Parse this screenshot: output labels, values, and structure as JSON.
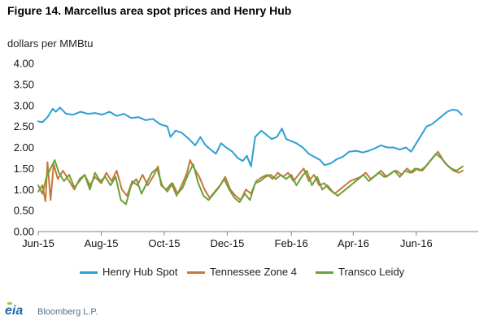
{
  "title": "Figure 14. Marcellus area spot prices and Henry Hub",
  "unit_label": "dollars per MMBtu",
  "source": {
    "logo": "eia",
    "credit": "Bloomberg L.P."
  },
  "colors": {
    "henry": "#2e9fd3",
    "tennessee": "#c8773a",
    "transco": "#6aa23a",
    "axis": "#808080",
    "grid": "#e0e0e0"
  },
  "chart_data": {
    "type": "line",
    "title": "Figure 14. Marcellus area spot prices and Henry Hub",
    "ylabel": "dollars per MMBtu",
    "xlabel": "",
    "ylim": [
      0,
      4
    ],
    "xlim": [
      "2015-06-01",
      "2016-07-31"
    ],
    "grid": false,
    "legend_position": "bottom",
    "yticks": [
      "0.00",
      "0.50",
      "1.00",
      "1.50",
      "2.00",
      "2.50",
      "3.00",
      "3.50",
      "4.00"
    ],
    "xticks": [
      "Jun-15",
      "Aug-15",
      "Oct-15",
      "Dec-15",
      "Feb-16",
      "Apr-16",
      "Jun-16"
    ],
    "xtick_dates": [
      "2015-06-01",
      "2015-08-01",
      "2015-10-01",
      "2015-12-01",
      "2016-02-01",
      "2016-04-01",
      "2016-06-01"
    ],
    "series": [
      {
        "name": "Henry Hub Spot",
        "color": "#2e9fd3",
        "points": [
          [
            "2015-06-01",
            2.62
          ],
          [
            "2015-06-05",
            2.6
          ],
          [
            "2015-06-10",
            2.72
          ],
          [
            "2015-06-15",
            2.92
          ],
          [
            "2015-06-18",
            2.85
          ],
          [
            "2015-06-22",
            2.95
          ],
          [
            "2015-06-28",
            2.8
          ],
          [
            "2015-07-05",
            2.78
          ],
          [
            "2015-07-12",
            2.85
          ],
          [
            "2015-07-19",
            2.8
          ],
          [
            "2015-07-26",
            2.82
          ],
          [
            "2015-08-02",
            2.78
          ],
          [
            "2015-08-09",
            2.85
          ],
          [
            "2015-08-16",
            2.75
          ],
          [
            "2015-08-23",
            2.8
          ],
          [
            "2015-08-30",
            2.7
          ],
          [
            "2015-09-06",
            2.72
          ],
          [
            "2015-09-13",
            2.65
          ],
          [
            "2015-09-20",
            2.68
          ],
          [
            "2015-09-27",
            2.55
          ],
          [
            "2015-10-04",
            2.5
          ],
          [
            "2015-10-07",
            2.25
          ],
          [
            "2015-10-12",
            2.4
          ],
          [
            "2015-10-18",
            2.35
          ],
          [
            "2015-10-25",
            2.2
          ],
          [
            "2015-10-31",
            2.05
          ],
          [
            "2015-11-05",
            2.25
          ],
          [
            "2015-11-10",
            2.05
          ],
          [
            "2015-11-15",
            1.95
          ],
          [
            "2015-11-20",
            1.85
          ],
          [
            "2015-11-25",
            2.1
          ],
          [
            "2015-11-30",
            2.0
          ],
          [
            "2015-12-06",
            1.9
          ],
          [
            "2015-12-11",
            1.75
          ],
          [
            "2015-12-16",
            1.68
          ],
          [
            "2015-12-20",
            1.8
          ],
          [
            "2015-12-24",
            1.55
          ],
          [
            "2015-12-28",
            2.25
          ],
          [
            "2016-01-03",
            2.4
          ],
          [
            "2016-01-08",
            2.3
          ],
          [
            "2016-01-13",
            2.2
          ],
          [
            "2016-01-18",
            2.25
          ],
          [
            "2016-01-23",
            2.45
          ],
          [
            "2016-01-27",
            2.2
          ],
          [
            "2016-02-01",
            2.15
          ],
          [
            "2016-02-06",
            2.1
          ],
          [
            "2016-02-12",
            2.0
          ],
          [
            "2016-02-18",
            1.85
          ],
          [
            "2016-02-23",
            1.78
          ],
          [
            "2016-02-29",
            1.7
          ],
          [
            "2016-03-04",
            1.58
          ],
          [
            "2016-03-10",
            1.62
          ],
          [
            "2016-03-16",
            1.72
          ],
          [
            "2016-03-22",
            1.78
          ],
          [
            "2016-03-28",
            1.9
          ],
          [
            "2016-04-04",
            1.92
          ],
          [
            "2016-04-10",
            1.88
          ],
          [
            "2016-04-16",
            1.92
          ],
          [
            "2016-04-22",
            1.98
          ],
          [
            "2016-04-28",
            2.05
          ],
          [
            "2016-05-04",
            2.0
          ],
          [
            "2016-05-10",
            2.0
          ],
          [
            "2016-05-16",
            1.95
          ],
          [
            "2016-05-22",
            2.0
          ],
          [
            "2016-05-27",
            1.9
          ],
          [
            "2016-06-01",
            2.1
          ],
          [
            "2016-06-06",
            2.3
          ],
          [
            "2016-06-11",
            2.5
          ],
          [
            "2016-06-16",
            2.55
          ],
          [
            "2016-06-21",
            2.65
          ],
          [
            "2016-06-26",
            2.75
          ],
          [
            "2016-07-01",
            2.85
          ],
          [
            "2016-07-06",
            2.9
          ],
          [
            "2016-07-11",
            2.88
          ],
          [
            "2016-07-15",
            2.78
          ]
        ]
      },
      {
        "name": "Tennessee Zone 4",
        "color": "#c8773a",
        "points": [
          [
            "2015-06-01",
            0.95
          ],
          [
            "2015-06-05",
            1.1
          ],
          [
            "2015-06-08",
            0.72
          ],
          [
            "2015-06-10",
            1.65
          ],
          [
            "2015-06-13",
            0.75
          ],
          [
            "2015-06-16",
            1.6
          ],
          [
            "2015-06-20",
            1.25
          ],
          [
            "2015-06-25",
            1.45
          ],
          [
            "2015-07-01",
            1.2
          ],
          [
            "2015-07-06",
            1.0
          ],
          [
            "2015-07-11",
            1.25
          ],
          [
            "2015-07-16",
            1.35
          ],
          [
            "2015-07-21",
            1.1
          ],
          [
            "2015-07-26",
            1.3
          ],
          [
            "2015-08-01",
            1.15
          ],
          [
            "2015-08-06",
            1.4
          ],
          [
            "2015-08-11",
            1.2
          ],
          [
            "2015-08-16",
            1.45
          ],
          [
            "2015-08-21",
            1.0
          ],
          [
            "2015-08-26",
            0.85
          ],
          [
            "2015-08-31",
            1.2
          ],
          [
            "2015-09-05",
            1.1
          ],
          [
            "2015-09-10",
            1.35
          ],
          [
            "2015-09-15",
            1.1
          ],
          [
            "2015-09-20",
            1.3
          ],
          [
            "2015-09-25",
            1.55
          ],
          [
            "2015-09-28",
            1.1
          ],
          [
            "2015-10-03",
            1.0
          ],
          [
            "2015-10-08",
            1.15
          ],
          [
            "2015-10-13",
            0.85
          ],
          [
            "2015-10-18",
            1.1
          ],
          [
            "2015-10-23",
            1.4
          ],
          [
            "2015-10-26",
            1.7
          ],
          [
            "2015-10-30",
            1.5
          ],
          [
            "2015-11-04",
            1.3
          ],
          [
            "2015-11-09",
            1.0
          ],
          [
            "2015-11-14",
            0.8
          ],
          [
            "2015-11-19",
            0.95
          ],
          [
            "2015-11-24",
            1.1
          ],
          [
            "2015-11-29",
            1.3
          ],
          [
            "2015-12-04",
            1.0
          ],
          [
            "2015-12-09",
            0.85
          ],
          [
            "2015-12-14",
            0.75
          ],
          [
            "2015-12-19",
            1.0
          ],
          [
            "2015-12-24",
            0.9
          ],
          [
            "2015-12-29",
            1.2
          ],
          [
            "2016-01-04",
            1.3
          ],
          [
            "2016-01-09",
            1.35
          ],
          [
            "2016-01-14",
            1.25
          ],
          [
            "2016-01-19",
            1.4
          ],
          [
            "2016-01-24",
            1.3
          ],
          [
            "2016-01-29",
            1.4
          ],
          [
            "2016-02-03",
            1.2
          ],
          [
            "2016-02-08",
            1.35
          ],
          [
            "2016-02-13",
            1.5
          ],
          [
            "2016-02-18",
            1.2
          ],
          [
            "2016-02-23",
            1.35
          ],
          [
            "2016-02-28",
            1.1
          ],
          [
            "2016-03-04",
            1.15
          ],
          [
            "2016-03-09",
            1.0
          ],
          [
            "2016-03-14",
            0.9
          ],
          [
            "2016-03-19",
            1.0
          ],
          [
            "2016-03-24",
            1.1
          ],
          [
            "2016-03-29",
            1.2
          ],
          [
            "2016-04-03",
            1.25
          ],
          [
            "2016-04-08",
            1.3
          ],
          [
            "2016-04-13",
            1.4
          ],
          [
            "2016-04-18",
            1.25
          ],
          [
            "2016-04-23",
            1.35
          ],
          [
            "2016-04-28",
            1.45
          ],
          [
            "2016-05-03",
            1.3
          ],
          [
            "2016-05-08",
            1.4
          ],
          [
            "2016-05-13",
            1.45
          ],
          [
            "2016-05-18",
            1.35
          ],
          [
            "2016-05-23",
            1.5
          ],
          [
            "2016-05-28",
            1.4
          ],
          [
            "2016-06-02",
            1.5
          ],
          [
            "2016-06-07",
            1.45
          ],
          [
            "2016-06-12",
            1.6
          ],
          [
            "2016-06-17",
            1.75
          ],
          [
            "2016-06-22",
            1.9
          ],
          [
            "2016-06-27",
            1.7
          ],
          [
            "2016-07-02",
            1.55
          ],
          [
            "2016-07-07",
            1.45
          ],
          [
            "2016-07-12",
            1.4
          ],
          [
            "2016-07-16",
            1.45
          ]
        ]
      },
      {
        "name": "Transco Leidy",
        "color": "#6aa23a",
        "points": [
          [
            "2015-06-01",
            1.1
          ],
          [
            "2015-06-05",
            0.9
          ],
          [
            "2015-06-09",
            1.3
          ],
          [
            "2015-06-13",
            1.5
          ],
          [
            "2015-06-17",
            1.7
          ],
          [
            "2015-06-21",
            1.4
          ],
          [
            "2015-06-26",
            1.2
          ],
          [
            "2015-07-01",
            1.35
          ],
          [
            "2015-07-06",
            1.05
          ],
          [
            "2015-07-11",
            1.2
          ],
          [
            "2015-07-16",
            1.35
          ],
          [
            "2015-07-21",
            1.0
          ],
          [
            "2015-07-26",
            1.4
          ],
          [
            "2015-07-31",
            1.2
          ],
          [
            "2015-08-05",
            1.3
          ],
          [
            "2015-08-10",
            1.1
          ],
          [
            "2015-08-15",
            1.3
          ],
          [
            "2015-08-20",
            0.75
          ],
          [
            "2015-08-25",
            0.65
          ],
          [
            "2015-08-30",
            1.1
          ],
          [
            "2015-09-04",
            1.25
          ],
          [
            "2015-09-09",
            0.9
          ],
          [
            "2015-09-14",
            1.15
          ],
          [
            "2015-09-19",
            1.4
          ],
          [
            "2015-09-24",
            1.5
          ],
          [
            "2015-09-29",
            1.1
          ],
          [
            "2015-10-04",
            0.95
          ],
          [
            "2015-10-09",
            1.15
          ],
          [
            "2015-10-14",
            0.9
          ],
          [
            "2015-10-19",
            1.05
          ],
          [
            "2015-10-24",
            1.35
          ],
          [
            "2015-10-29",
            1.6
          ],
          [
            "2015-11-03",
            1.15
          ],
          [
            "2015-11-08",
            0.85
          ],
          [
            "2015-11-13",
            0.75
          ],
          [
            "2015-11-18",
            0.9
          ],
          [
            "2015-11-23",
            1.05
          ],
          [
            "2015-11-28",
            1.25
          ],
          [
            "2015-12-03",
            1.0
          ],
          [
            "2015-12-08",
            0.8
          ],
          [
            "2015-12-13",
            0.7
          ],
          [
            "2015-12-18",
            0.9
          ],
          [
            "2015-12-23",
            0.75
          ],
          [
            "2015-12-28",
            1.15
          ],
          [
            "2016-01-02",
            1.2
          ],
          [
            "2016-01-07",
            1.3
          ],
          [
            "2016-01-12",
            1.35
          ],
          [
            "2016-01-17",
            1.25
          ],
          [
            "2016-01-22",
            1.35
          ],
          [
            "2016-01-27",
            1.25
          ],
          [
            "2016-02-01",
            1.35
          ],
          [
            "2016-02-06",
            1.1
          ],
          [
            "2016-02-11",
            1.3
          ],
          [
            "2016-02-16",
            1.45
          ],
          [
            "2016-02-21",
            1.1
          ],
          [
            "2016-02-26",
            1.3
          ],
          [
            "2016-03-02",
            1.0
          ],
          [
            "2016-03-07",
            1.1
          ],
          [
            "2016-03-12",
            0.95
          ],
          [
            "2016-03-17",
            0.85
          ],
          [
            "2016-03-22",
            0.95
          ],
          [
            "2016-03-27",
            1.05
          ],
          [
            "2016-04-01",
            1.15
          ],
          [
            "2016-04-06",
            1.25
          ],
          [
            "2016-04-11",
            1.35
          ],
          [
            "2016-04-16",
            1.2
          ],
          [
            "2016-04-21",
            1.3
          ],
          [
            "2016-04-26",
            1.4
          ],
          [
            "2016-05-01",
            1.3
          ],
          [
            "2016-05-06",
            1.35
          ],
          [
            "2016-05-11",
            1.45
          ],
          [
            "2016-05-16",
            1.3
          ],
          [
            "2016-05-21",
            1.45
          ],
          [
            "2016-05-26",
            1.4
          ],
          [
            "2016-05-31",
            1.5
          ],
          [
            "2016-06-05",
            1.45
          ],
          [
            "2016-06-10",
            1.55
          ],
          [
            "2016-06-15",
            1.7
          ],
          [
            "2016-06-20",
            1.85
          ],
          [
            "2016-06-25",
            1.75
          ],
          [
            "2016-06-30",
            1.6
          ],
          [
            "2016-07-05",
            1.5
          ],
          [
            "2016-07-10",
            1.45
          ],
          [
            "2016-07-16",
            1.55
          ]
        ]
      }
    ]
  }
}
